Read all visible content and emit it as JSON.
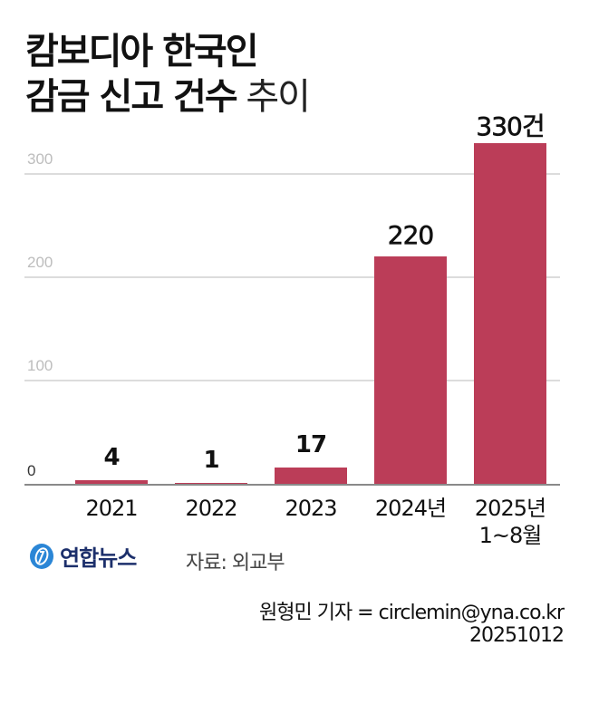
{
  "title": {
    "line1": "캄보디아 한국인",
    "line2_bold": "감금 신고 건수",
    "line2_light": " 추이"
  },
  "colors": {
    "bar": "#BB3D58",
    "grid": "#DCDCDC",
    "axis": "#8A8A8A",
    "tick_label": "#BDBDBD",
    "logo": "#1C2F6B",
    "logo_mark": "#2B86D6"
  },
  "y_ticks": [
    "0",
    "100",
    "200",
    "300"
  ],
  "bars": [
    {
      "category": "2021",
      "category_line2": "",
      "value": 4,
      "label": "4"
    },
    {
      "category": "2022",
      "category_line2": "",
      "value": 1,
      "label": "1"
    },
    {
      "category": "2023",
      "category_line2": "",
      "value": 17,
      "label": "17"
    },
    {
      "category": "2024년",
      "category_line2": "",
      "value": 220,
      "label": "220"
    },
    {
      "category": "2025년",
      "category_line2": "1~8월",
      "value": 330,
      "label": "330건"
    }
  ],
  "footer": {
    "logo_text": "연합뉴스",
    "source": "자료: 외교부",
    "credit_line1": "원형민 기자 = circlemin@yna.co.kr",
    "credit_line2": "20251012"
  },
  "chart_data": {
    "type": "bar",
    "title": "캄보디아 한국인 감금 신고 건수 추이",
    "categories": [
      "2021",
      "2022",
      "2023",
      "2024년",
      "2025년 1~8월"
    ],
    "values": [
      4,
      1,
      17,
      220,
      330
    ],
    "data_labels": [
      "4",
      "1",
      "17",
      "220",
      "330건"
    ],
    "xlabel": "",
    "ylabel": "",
    "ylim": [
      0,
      330
    ],
    "y_ticks": [
      0,
      100,
      200,
      300
    ],
    "grid": true,
    "legend": null,
    "source": "자료: 외교부"
  }
}
